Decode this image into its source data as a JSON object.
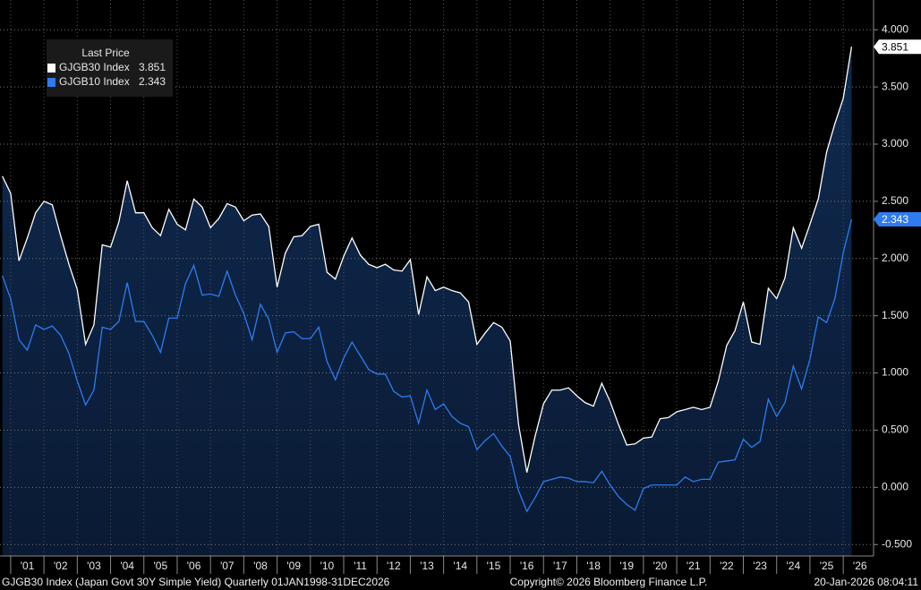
{
  "chart_data": {
    "type": "line",
    "legend_title": "Last Price",
    "footer_left": "GJGB30 Index (Japan Govt 30Y Simple Yield) Quarterly 01JAN1998-31DEC2026",
    "footer_center": "Copyright© 2026 Bloomberg Finance L.P.",
    "footer_right": "20-Jan-2026 08:04:11",
    "x": [
      2000.75,
      2001,
      2001.25,
      2001.5,
      2001.75,
      2002,
      2002.25,
      2002.5,
      2002.75,
      2003,
      2003.25,
      2003.5,
      2003.75,
      2004,
      2004.25,
      2004.5,
      2004.75,
      2005,
      2005.25,
      2005.5,
      2005.75,
      2006,
      2006.25,
      2006.5,
      2006.75,
      2007,
      2007.25,
      2007.5,
      2007.75,
      2008,
      2008.25,
      2008.5,
      2008.75,
      2009,
      2009.25,
      2009.5,
      2009.75,
      2010,
      2010.25,
      2010.5,
      2010.75,
      2011,
      2011.25,
      2011.5,
      2011.75,
      2012,
      2012.25,
      2012.5,
      2012.75,
      2013,
      2013.25,
      2013.5,
      2013.75,
      2014,
      2014.25,
      2014.5,
      2014.75,
      2015,
      2015.25,
      2015.5,
      2015.75,
      2016,
      2016.25,
      2016.5,
      2016.75,
      2017,
      2017.25,
      2017.5,
      2017.75,
      2018,
      2018.25,
      2018.5,
      2018.75,
      2019,
      2019.25,
      2019.5,
      2019.75,
      2020,
      2020.25,
      2020.5,
      2020.75,
      2021,
      2021.25,
      2021.5,
      2021.75,
      2022,
      2022.25,
      2022.5,
      2022.75,
      2023,
      2023.25,
      2023.5,
      2023.75,
      2024,
      2024.25,
      2024.5,
      2024.75,
      2025,
      2025.25,
      2025.5,
      2025.75,
      2026,
      2026.25
    ],
    "series": [
      {
        "name": "GJGB30 Index",
        "color": "#ffffff",
        "values": [
          2.72,
          2.57,
          1.98,
          2.18,
          2.4,
          2.5,
          2.47,
          2.2,
          1.95,
          1.73,
          1.25,
          1.42,
          2.12,
          2.1,
          2.32,
          2.68,
          2.4,
          2.4,
          2.27,
          2.2,
          2.43,
          2.3,
          2.25,
          2.52,
          2.45,
          2.27,
          2.35,
          2.48,
          2.45,
          2.33,
          2.38,
          2.39,
          2.28,
          1.75,
          2.05,
          2.19,
          2.2,
          2.28,
          2.3,
          1.88,
          1.82,
          2.02,
          2.18,
          2.03,
          1.95,
          1.92,
          1.95,
          1.9,
          1.89,
          1.99,
          1.51,
          1.84,
          1.72,
          1.75,
          1.72,
          1.7,
          1.62,
          1.25,
          1.35,
          1.44,
          1.4,
          1.28,
          0.55,
          0.13,
          0.45,
          0.73,
          0.85,
          0.85,
          0.87,
          0.8,
          0.74,
          0.71,
          0.91,
          0.75,
          0.55,
          0.37,
          0.38,
          0.43,
          0.44,
          0.6,
          0.61,
          0.66,
          0.68,
          0.7,
          0.68,
          0.7,
          0.93,
          1.24,
          1.37,
          1.62,
          1.27,
          1.25,
          1.74,
          1.65,
          1.83,
          2.27,
          2.09,
          2.3,
          2.52,
          2.93,
          3.18,
          3.4,
          3.851
        ]
      },
      {
        "name": "GJGB10 Index",
        "color": "#2f7bf0",
        "values": [
          1.85,
          1.65,
          1.29,
          1.2,
          1.42,
          1.38,
          1.41,
          1.33,
          1.17,
          0.93,
          0.72,
          0.85,
          1.4,
          1.38,
          1.45,
          1.79,
          1.45,
          1.45,
          1.33,
          1.18,
          1.48,
          1.48,
          1.78,
          1.94,
          1.68,
          1.69,
          1.67,
          1.89,
          1.68,
          1.52,
          1.29,
          1.6,
          1.47,
          1.18,
          1.35,
          1.36,
          1.3,
          1.3,
          1.4,
          1.1,
          0.94,
          1.13,
          1.27,
          1.15,
          1.03,
          0.99,
          0.99,
          0.84,
          0.79,
          0.8,
          0.56,
          0.85,
          0.68,
          0.73,
          0.62,
          0.56,
          0.53,
          0.33,
          0.41,
          0.47,
          0.36,
          0.27,
          -0.03,
          -0.21,
          -0.09,
          0.05,
          0.07,
          0.09,
          0.08,
          0.05,
          0.05,
          0.04,
          0.14,
          0.02,
          -0.08,
          -0.15,
          -0.2,
          -0.01,
          0.02,
          0.02,
          0.02,
          0.02,
          0.09,
          0.05,
          0.07,
          0.07,
          0.22,
          0.23,
          0.24,
          0.42,
          0.35,
          0.4,
          0.77,
          0.62,
          0.74,
          1.06,
          0.86,
          1.12,
          1.49,
          1.44,
          1.65,
          2.05,
          2.343
        ]
      }
    ],
    "xlim": [
      2000.68,
      2026.91
    ],
    "ylim": [
      -0.6,
      4.26
    ],
    "yticks": [
      {
        "value": -0.5,
        "label": "-0.500"
      },
      {
        "value": 0,
        "label": "0.000"
      },
      {
        "value": 0.5,
        "label": "0.500"
      },
      {
        "value": 1,
        "label": "1.000"
      },
      {
        "value": 1.5,
        "label": "1.500"
      },
      {
        "value": 2,
        "label": "2.000"
      },
      {
        "value": 2.5,
        "label": "2.500"
      },
      {
        "value": 3,
        "label": "3.000"
      },
      {
        "value": 3.5,
        "label": "3.500"
      },
      {
        "value": 4,
        "label": "4.000"
      }
    ],
    "xticks": [
      {
        "value": 2001,
        "label": "'01"
      },
      {
        "value": 2002,
        "label": "'02"
      },
      {
        "value": 2003,
        "label": "'03"
      },
      {
        "value": 2004,
        "label": "'04"
      },
      {
        "value": 2005,
        "label": "'05"
      },
      {
        "value": 2006,
        "label": "'06"
      },
      {
        "value": 2007,
        "label": "'07"
      },
      {
        "value": 2008,
        "label": "'08"
      },
      {
        "value": 2009,
        "label": "'09"
      },
      {
        "value": 2010,
        "label": "'10"
      },
      {
        "value": 2011,
        "label": "'11"
      },
      {
        "value": 2012,
        "label": "'12"
      },
      {
        "value": 2013,
        "label": "'13"
      },
      {
        "value": 2014,
        "label": "'14"
      },
      {
        "value": 2015,
        "label": "'15"
      },
      {
        "value": 2016,
        "label": "'16"
      },
      {
        "value": 2017,
        "label": "'17"
      },
      {
        "value": 2018,
        "label": "'18"
      },
      {
        "value": 2019,
        "label": "'19"
      },
      {
        "value": 2020,
        "label": "'20"
      },
      {
        "value": 2021,
        "label": "'21"
      },
      {
        "value": 2022,
        "label": "'22"
      },
      {
        "value": 2023,
        "label": "'23"
      },
      {
        "value": 2024,
        "label": "'24"
      },
      {
        "value": 2025,
        "label": "'25"
      },
      {
        "value": 2026,
        "label": "'26"
      }
    ],
    "grid": true
  }
}
